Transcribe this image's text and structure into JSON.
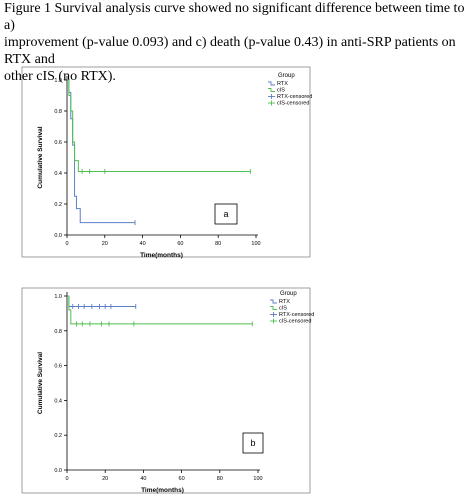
{
  "caption": {
    "line1": "Figure 1 Survival analysis curve showed no significant difference between time to a)",
    "line2": "improvement (p-value 0.093) and c) death (p-value 0.43) in anti-SRP patients on RTX and",
    "line3": "other cIS (no RTX)."
  },
  "colors": {
    "rtx": "#5b7fc7",
    "cis": "#4fbf4f",
    "axis": "#000000",
    "frame": "#888888"
  },
  "chart_data": [
    {
      "type": "line",
      "panel_label": "a",
      "xlabel": "Time(months)",
      "ylabel": "Cumulative Survival",
      "xlim": [
        0,
        100
      ],
      "ylim": [
        0,
        1.0
      ],
      "x_ticks": [
        0,
        20,
        40,
        60,
        80,
        100
      ],
      "y_ticks": [
        "0.0",
        "0.2",
        "0.4",
        "0.6",
        "0.8",
        "1.0"
      ],
      "legend_title": "Group",
      "legend": [
        "RTX",
        "cIS",
        "RTX-censored",
        "cIS-censored"
      ],
      "series": [
        {
          "name": "RTX",
          "color_key": "rtx",
          "steps": [
            [
              0,
              1.0
            ],
            [
              1,
              0.92
            ],
            [
              2,
              0.75
            ],
            [
              3,
              0.58
            ],
            [
              4,
              0.25
            ],
            [
              5,
              0.17
            ],
            [
              7,
              0.08
            ],
            [
              36,
              0.08
            ]
          ],
          "censored": [
            [
              36,
              0.08
            ]
          ]
        },
        {
          "name": "cIS",
          "color_key": "cis",
          "steps": [
            [
              0,
              1.0
            ],
            [
              1,
              0.9
            ],
            [
              2,
              0.8
            ],
            [
              3,
              0.6
            ],
            [
              4,
              0.48
            ],
            [
              6,
              0.41
            ],
            [
              97,
              0.41
            ]
          ],
          "censored": [
            [
              8,
              0.41
            ],
            [
              12,
              0.41
            ],
            [
              20,
              0.41
            ],
            [
              97,
              0.41
            ]
          ]
        }
      ]
    },
    {
      "type": "line",
      "panel_label": "b",
      "xlabel": "Time(months)",
      "ylabel": "Cumulative Survival",
      "xlim": [
        0,
        100
      ],
      "ylim": [
        0,
        1.0
      ],
      "x_ticks": [
        0,
        20,
        40,
        60,
        80,
        100
      ],
      "y_ticks": [
        "0.0",
        "0.2",
        "0.4",
        "0.6",
        "0.8",
        "1.0"
      ],
      "legend_title": "Group",
      "legend": [
        "RTX",
        "cIS",
        "RTX-censored",
        "cIS-censored"
      ],
      "series": [
        {
          "name": "RTX",
          "color_key": "rtx",
          "steps": [
            [
              0,
              1.0
            ],
            [
              1,
              0.94
            ],
            [
              36,
              0.94
            ]
          ],
          "censored": [
            [
              3,
              0.94
            ],
            [
              6,
              0.94
            ],
            [
              9,
              0.94
            ],
            [
              13,
              0.94
            ],
            [
              17,
              0.94
            ],
            [
              20,
              0.94
            ],
            [
              23,
              0.94
            ],
            [
              36,
              0.94
            ]
          ]
        },
        {
          "name": "cIS",
          "color_key": "cis",
          "steps": [
            [
              0,
              1.0
            ],
            [
              1,
              0.92
            ],
            [
              2,
              0.84
            ],
            [
              97,
              0.84
            ]
          ],
          "censored": [
            [
              5,
              0.84
            ],
            [
              8,
              0.84
            ],
            [
              12,
              0.84
            ],
            [
              18,
              0.84
            ],
            [
              22,
              0.84
            ],
            [
              35,
              0.84
            ],
            [
              97,
              0.84
            ]
          ]
        }
      ]
    }
  ]
}
